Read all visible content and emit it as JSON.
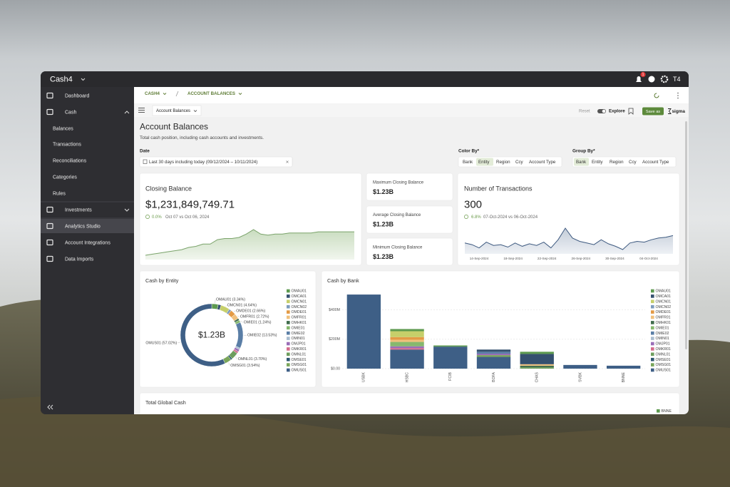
{
  "app": {
    "brand": "Cash4",
    "notifications": "1",
    "user": "T4"
  },
  "sidebar": {
    "items": [
      "Dashboard",
      "Cash",
      "Balances",
      "Transactions",
      "Reconciliations",
      "Categories",
      "Rules",
      "Investments",
      "Analytics Studio",
      "Account Integrations",
      "Data Imports"
    ],
    "active": 8
  },
  "breadcrumb": [
    "CASH4",
    "ACCOUNT BALANCES"
  ],
  "toolbar": {
    "tab": "Account Balances",
    "reset": "Reset",
    "explore": "Explore",
    "save": "Save as",
    "brand": "sigma"
  },
  "page": {
    "title": "Account Balances",
    "subtitle": "Total cash position, including cash accounts and investments."
  },
  "filters": {
    "date_label": "Date",
    "date_value": "Last 30 days including today (09/12/2024 – 10/11/2024)",
    "color_by_label": "Color By*",
    "color_by_options": [
      "Bank",
      "Entity",
      "Region",
      "Ccy",
      "Account Type"
    ],
    "color_by_selected": 1,
    "group_by_label": "Group By*",
    "group_by_options": [
      "Bank",
      "Entity",
      "Region",
      "Ccy",
      "Account Type"
    ],
    "group_by_selected": 0
  },
  "closing_balance": {
    "title": "Closing Balance",
    "value": "$1,231,849,749.71",
    "change": "0.0%",
    "comparison": "Oct 07 vs Oct 06, 2024",
    "trend": [
      1.02,
      1.03,
      1.04,
      1.05,
      1.06,
      1.07,
      1.09,
      1.1,
      1.12,
      1.12,
      1.16,
      1.17,
      1.17,
      1.18,
      1.21,
      1.25,
      1.21,
      1.2,
      1.21,
      1.21,
      1.22,
      1.22,
      1.22,
      1.22,
      1.23,
      1.23,
      1.23,
      1.23,
      1.23,
      1.23
    ]
  },
  "stats": [
    {
      "title": "Maximum Closing Balance",
      "value": "$1.23B"
    },
    {
      "title": "Average Closing Balance",
      "value": "$1.23B"
    },
    {
      "title": "Minimum Closing Balance",
      "value": "$1.23B"
    }
  ],
  "transactions": {
    "title": "Number of Transactions",
    "value": "300",
    "change": "6.8%",
    "comparison": "07-Oct-2024 vs 06-Oct-2024",
    "x_labels": [
      "14-Sep-2024",
      "18-Sep-2024",
      "22-Sep-2024",
      "26-Sep-2024",
      "30-Sep-2024",
      "04-Oct-2024"
    ],
    "values": [
      300,
      290,
      270,
      305,
      285,
      290,
      275,
      300,
      280,
      295,
      285,
      305,
      270,
      320,
      390,
      330,
      310,
      300,
      290,
      320,
      295,
      280,
      260,
      300,
      310,
      305,
      320,
      330,
      335,
      345
    ]
  },
  "cash_by_entity": {
    "type": "pie",
    "title": "Cash by Entity",
    "center_label": "$1.23B",
    "categories": [
      "OMAU01",
      "OMCA01",
      "OMCN01",
      "OMCN02",
      "OMDE01",
      "OMFR01",
      "OMHK01",
      "OMIE01",
      "OMIE02",
      "OMIN01",
      "OMJP01",
      "OMKR01",
      "OMNL01",
      "OMSE01",
      "OMSG01",
      "OMUS01"
    ],
    "values": [
      3.34,
      1.5,
      4.64,
      1.2,
      2.66,
      2.72,
      1.0,
      1.24,
      13.53,
      0.9,
      1.2,
      1.0,
      3.7,
      0.81,
      3.54,
      57.02
    ],
    "value_labels": [
      "OMAU01 (3.34%)",
      null,
      "OMCN01 (4.64%)",
      null,
      "OMDE01 (2.66%)",
      "OMFR01 (2.72%)",
      null,
      "OMIE01 (1.24%)",
      "OMIE02 (13.53%)",
      null,
      null,
      null,
      "OMNL01 (3.70%)",
      null,
      "OMSG01 (3.54%)",
      "OMUS01 (57.02%)"
    ],
    "colors": [
      "#5d9a4f",
      "#34506f",
      "#c6cf6a",
      "#7d9cbd",
      "#e39a45",
      "#f0c07c",
      "#3f6b4c",
      "#86b86e",
      "#5a7ea6",
      "#a9bccf",
      "#9a6db7",
      "#d46b8c",
      "#6e9e5e",
      "#2d5671",
      "#7aa65a",
      "#3e5f86"
    ]
  },
  "cash_by_bank": {
    "type": "bar",
    "stacked": true,
    "title": "Cash by Bank",
    "categories": [
      "USBK",
      "HSBC",
      "FCIB",
      "BOFA",
      "CHAS",
      "SVBK",
      "BNNE"
    ],
    "ylim": [
      0,
      520
    ],
    "yticks": [
      {
        "value": 0,
        "label": "$0.00"
      },
      {
        "value": 200,
        "label": "$200M"
      },
      {
        "value": 400,
        "label": "$400M"
      }
    ],
    "grid": true,
    "series": [
      {
        "name": "OMAU01",
        "color": "#5d9a4f",
        "values": [
          0,
          15,
          8,
          0,
          15,
          0,
          0
        ]
      },
      {
        "name": "OMCA01",
        "color": "#34506f",
        "values": [
          0,
          0,
          0,
          15,
          70,
          0,
          0
        ]
      },
      {
        "name": "OMCN01",
        "color": "#c6cf6a",
        "values": [
          0,
          40,
          0,
          0,
          0,
          0,
          0
        ]
      },
      {
        "name": "OMCN02",
        "color": "#7d9cbd",
        "values": [
          0,
          0,
          0,
          0,
          0,
          0,
          0
        ]
      },
      {
        "name": "OMDE01",
        "color": "#e39a45",
        "values": [
          0,
          18,
          0,
          0,
          0,
          0,
          0
        ]
      },
      {
        "name": "OMFR01",
        "color": "#f0c07c",
        "values": [
          0,
          15,
          0,
          0,
          10,
          0,
          0
        ]
      },
      {
        "name": "OMHK01",
        "color": "#3f6b4c",
        "values": [
          0,
          0,
          0,
          0,
          10,
          0,
          0
        ]
      },
      {
        "name": "OMIE01",
        "color": "#86b86e",
        "values": [
          0,
          30,
          0,
          0,
          0,
          0,
          0
        ]
      },
      {
        "name": "OMIE02",
        "color": "#5a7ea6",
        "values": [
          0,
          0,
          0,
          13,
          0,
          0,
          0
        ]
      },
      {
        "name": "OMIN01",
        "color": "#a9bccf",
        "values": [
          0,
          0,
          0,
          0,
          0,
          0,
          0
        ]
      },
      {
        "name": "OMJP01",
        "color": "#9a6db7",
        "values": [
          0,
          12,
          0,
          10,
          0,
          0,
          0
        ]
      },
      {
        "name": "OMKR01",
        "color": "#d46b8c",
        "values": [
          0,
          10,
          0,
          0,
          0,
          0,
          0
        ]
      },
      {
        "name": "OMNL01",
        "color": "#6e9e5e",
        "values": [
          0,
          0,
          0,
          0,
          10,
          0,
          0
        ]
      },
      {
        "name": "OMSE01",
        "color": "#2d5671",
        "values": [
          0,
          0,
          0,
          0,
          0,
          0,
          0
        ]
      },
      {
        "name": "OMSG01",
        "color": "#7aa65a",
        "values": [
          0,
          0,
          0,
          12,
          0,
          0,
          0
        ]
      },
      {
        "name": "OMUS01",
        "color": "#3e5f86",
        "values": [
          505,
          130,
          150,
          80,
          0,
          25,
          20
        ]
      }
    ]
  },
  "total_global_cash": {
    "title": "Total Global Cash",
    "legend": [
      "BNNE"
    ],
    "legend_color": "#5d9a4f"
  }
}
